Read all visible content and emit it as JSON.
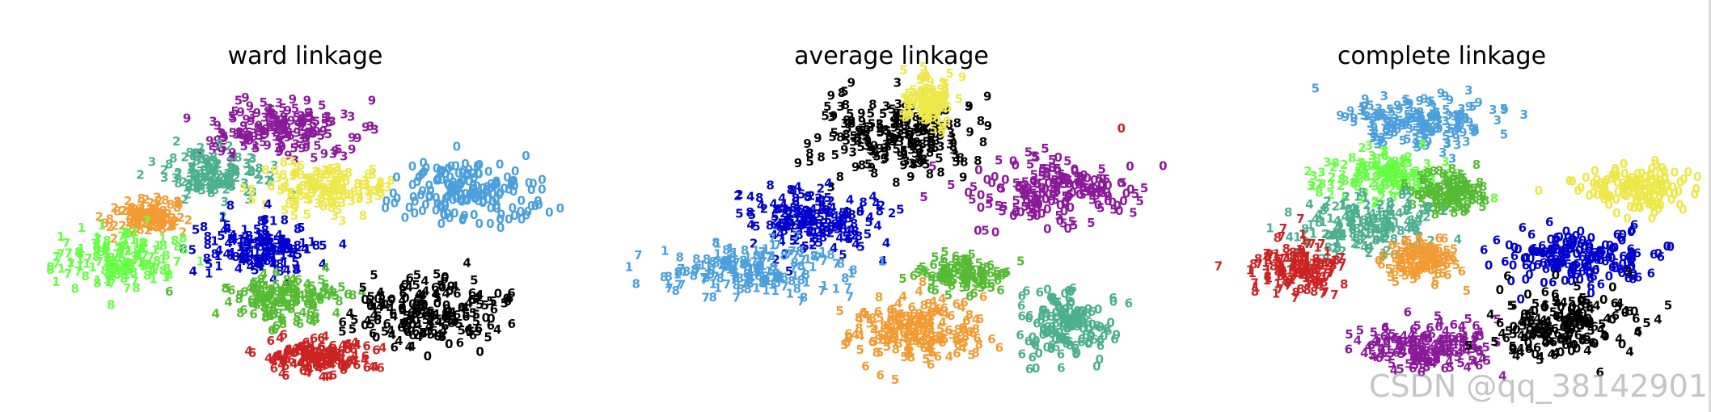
{
  "chart_data": [
    {
      "type": "scatter",
      "title": "ward linkage",
      "marker": "digit-text",
      "clusters": [
        {
          "color": "#8B1A9A",
          "digits": [
            "3",
            "9",
            "5"
          ],
          "center": [
            0.45,
            0.82
          ],
          "spread": [
            0.12,
            0.07
          ]
        },
        {
          "color": "#4CAF8E",
          "digits": [
            "2",
            "3",
            "8"
          ],
          "center": [
            0.33,
            0.68
          ],
          "spread": [
            0.08,
            0.06
          ]
        },
        {
          "color": "#EDE84A",
          "digits": [
            "5",
            "3",
            "8"
          ],
          "center": [
            0.53,
            0.64
          ],
          "spread": [
            0.09,
            0.06
          ]
        },
        {
          "color": "#F29B32",
          "digits": [
            "2",
            "8"
          ],
          "center": [
            0.2,
            0.55
          ],
          "spread": [
            0.05,
            0.04
          ]
        },
        {
          "color": "#0000CC",
          "digits": [
            "4",
            "1",
            "8",
            "5"
          ],
          "center": [
            0.4,
            0.46
          ],
          "spread": [
            0.09,
            0.07
          ]
        },
        {
          "color": "#4B9FDC",
          "digits": [
            "0"
          ],
          "center": [
            0.8,
            0.62
          ],
          "spread": [
            0.12,
            0.08
          ]
        },
        {
          "color": "#66FF44",
          "digits": [
            "7",
            "8",
            "1"
          ],
          "center": [
            0.15,
            0.42
          ],
          "spread": [
            0.1,
            0.07
          ]
        },
        {
          "color": "#55BB33",
          "digits": [
            "6",
            "8",
            "4",
            "5"
          ],
          "center": [
            0.45,
            0.3
          ],
          "spread": [
            0.1,
            0.06
          ]
        },
        {
          "color": "#000000",
          "digits": [
            "6",
            "5",
            "0",
            "4"
          ],
          "center": [
            0.72,
            0.27
          ],
          "spread": [
            0.12,
            0.09
          ]
        },
        {
          "color": "#CC2222",
          "digits": [
            "4",
            "6"
          ],
          "center": [
            0.51,
            0.13
          ],
          "spread": [
            0.09,
            0.05
          ]
        }
      ]
    },
    {
      "type": "scatter",
      "title": "average linkage",
      "marker": "digit-text",
      "clusters": [
        {
          "color": "#000000",
          "digits": [
            "3",
            "9",
            "5",
            "8"
          ],
          "center": [
            0.5,
            0.8
          ],
          "spread": [
            0.12,
            0.1
          ]
        },
        {
          "color": "#EDE84A",
          "digits": [
            "9",
            "5"
          ],
          "center": [
            0.56,
            0.9
          ],
          "spread": [
            0.04,
            0.06
          ]
        },
        {
          "color": "#0000CC",
          "digits": [
            "2",
            "5",
            "4",
            "8"
          ],
          "center": [
            0.34,
            0.55
          ],
          "spread": [
            0.11,
            0.08
          ]
        },
        {
          "color": "#8B1A9A",
          "digits": [
            "0",
            "5"
          ],
          "center": [
            0.79,
            0.63
          ],
          "spread": [
            0.13,
            0.09
          ]
        },
        {
          "color": "#4B9FDC",
          "digits": [
            "7",
            "8",
            "1"
          ],
          "center": [
            0.23,
            0.39
          ],
          "spread": [
            0.14,
            0.07
          ]
        },
        {
          "color": "#F29B32",
          "digits": [
            "6",
            "8",
            "4",
            "5"
          ],
          "center": [
            0.54,
            0.22
          ],
          "spread": [
            0.11,
            0.09
          ]
        },
        {
          "color": "#4CAF8E",
          "digits": [
            "6",
            "0"
          ],
          "center": [
            0.82,
            0.22
          ],
          "spread": [
            0.07,
            0.09
          ]
        },
        {
          "color": "#55BB33",
          "digits": [
            "6",
            "5"
          ],
          "center": [
            0.62,
            0.38
          ],
          "spread": [
            0.07,
            0.04
          ]
        },
        {
          "color": "#CC2222",
          "digits": [
            "0"
          ],
          "center": [
            0.92,
            0.82
          ],
          "spread": [
            0.005,
            0.005
          ]
        }
      ]
    },
    {
      "type": "scatter",
      "title": "complete linkage",
      "marker": "digit-text",
      "clusters": [
        {
          "color": "#4B9FDC",
          "digits": [
            "3",
            "9",
            "5"
          ],
          "center": [
            0.45,
            0.84
          ],
          "spread": [
            0.12,
            0.07
          ]
        },
        {
          "color": "#66FF44",
          "digits": [
            "2",
            "3",
            "8"
          ],
          "center": [
            0.37,
            0.68
          ],
          "spread": [
            0.1,
            0.06
          ]
        },
        {
          "color": "#55BB33",
          "digits": [
            "5",
            "8"
          ],
          "center": [
            0.5,
            0.62
          ],
          "spread": [
            0.07,
            0.05
          ]
        },
        {
          "color": "#4CAF8E",
          "digits": [
            "2",
            "4",
            "8",
            "1"
          ],
          "center": [
            0.34,
            0.52
          ],
          "spread": [
            0.11,
            0.08
          ]
        },
        {
          "color": "#EDE84A",
          "digits": [
            "0"
          ],
          "center": [
            0.88,
            0.64
          ],
          "spread": [
            0.09,
            0.06
          ]
        },
        {
          "color": "#0000CC",
          "digits": [
            "0",
            "6"
          ],
          "center": [
            0.77,
            0.43
          ],
          "spread": [
            0.13,
            0.07
          ]
        },
        {
          "color": "#F29B32",
          "digits": [
            "5",
            "6"
          ],
          "center": [
            0.45,
            0.42
          ],
          "spread": [
            0.06,
            0.05
          ]
        },
        {
          "color": "#CC2222",
          "digits": [
            "7",
            "8",
            "1"
          ],
          "center": [
            0.2,
            0.4
          ],
          "spread": [
            0.08,
            0.07
          ]
        },
        {
          "color": "#8B1A9A",
          "digits": [
            "6",
            "4",
            "5"
          ],
          "center": [
            0.47,
            0.16
          ],
          "spread": [
            0.12,
            0.07
          ]
        },
        {
          "color": "#000000",
          "digits": [
            "6",
            "5",
            "4",
            "0"
          ],
          "center": [
            0.74,
            0.22
          ],
          "spread": [
            0.12,
            0.09
          ]
        }
      ]
    }
  ],
  "watermark": "CSDN @qq_38142901"
}
